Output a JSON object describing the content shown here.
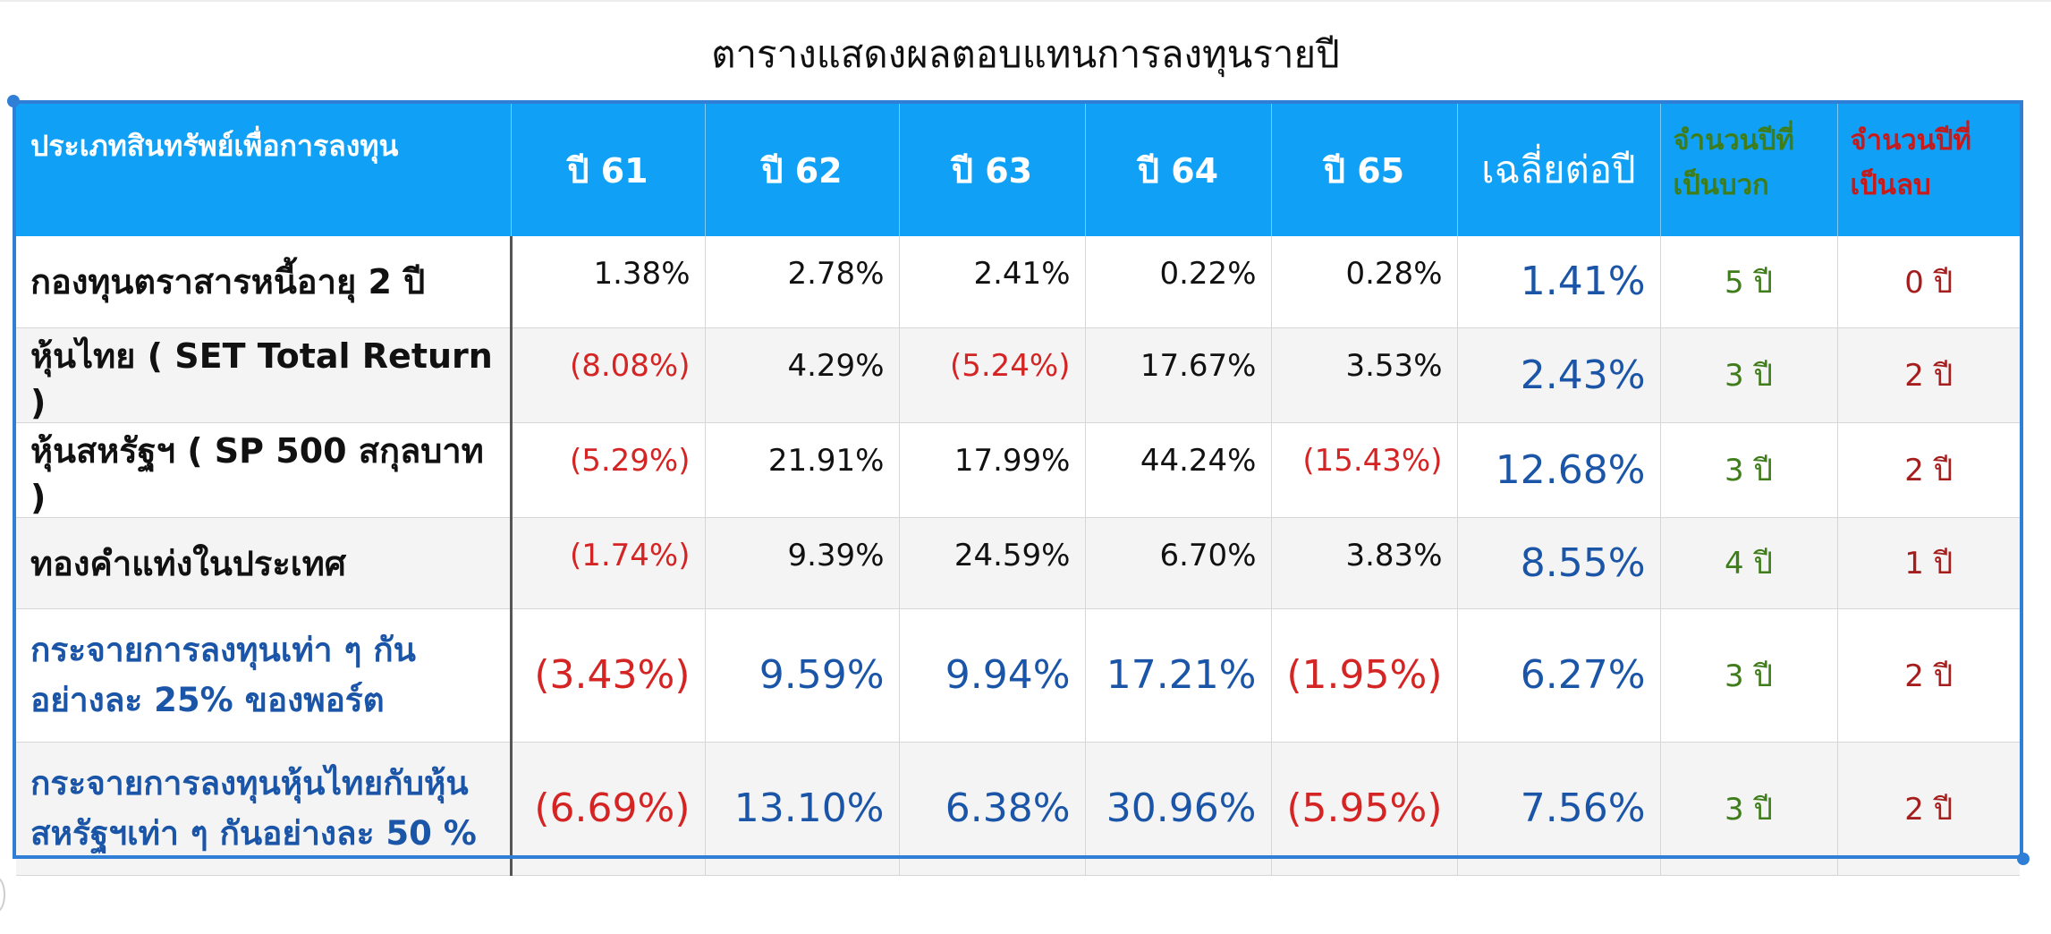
{
  "title": "ตารางแสดงผลตอบแทนการลงทุนรายปี",
  "headers": {
    "asset": "ประเภทสินทรัพย์เพื่อการลงทุน",
    "years": [
      "ปี 61",
      "ปี 62",
      "ปี 63",
      "ปี 64",
      "ปี 65"
    ],
    "average": "เฉลี่ยต่อปี",
    "positive_years": [
      "จำนวนปีที่",
      "เป็นบวก"
    ],
    "negative_years": [
      "จำนวนปีที่",
      "เป็นลบ"
    ]
  },
  "colors": {
    "header_bg": "#10a1f6",
    "positive_count": "#3f7d1a",
    "negative_count": "#a51e1e",
    "negative_value": "#d42424",
    "average_value": "#1b55a8",
    "frame": "#2f7fd6"
  },
  "rows": [
    {
      "asset": [
        "กองทุนตราสารหนี้อายุ 2 ปี"
      ],
      "values": [
        "1.38%",
        "2.78%",
        "2.41%",
        "0.22%",
        "0.28%"
      ],
      "average": "1.41%",
      "positive": "5 ปี",
      "negative": "0 ปี"
    },
    {
      "asset": [
        "หุ้นไทย ( SET Total Return )"
      ],
      "values": [
        "(8.08%)",
        "4.29%",
        "(5.24%)",
        "17.67%",
        "3.53%"
      ],
      "average": "2.43%",
      "positive": "3 ปี",
      "negative": "2 ปี"
    },
    {
      "asset": [
        "หุ้นสหรัฐฯ ( SP 500 สกุลบาท )"
      ],
      "values": [
        "(5.29%)",
        "21.91%",
        "17.99%",
        "44.24%",
        "(15.43%)"
      ],
      "average": "12.68%",
      "positive": "3 ปี",
      "negative": "2 ปี"
    },
    {
      "asset": [
        "ทองคำแท่งในประเทศ"
      ],
      "values": [
        "(1.74%)",
        "9.39%",
        "24.59%",
        "6.70%",
        "3.83%"
      ],
      "average": "8.55%",
      "positive": "4 ปี",
      "negative": "1 ปี"
    },
    {
      "asset": [
        "กระจายการลงทุนเท่า ๆ กัน",
        "อย่างละ 25% ของพอร์ต"
      ],
      "values": [
        "(3.43%)",
        "9.59%",
        "9.94%",
        "17.21%",
        "(1.95%)"
      ],
      "average": "6.27%",
      "positive": "3 ปี",
      "negative": "2 ปี"
    },
    {
      "asset": [
        "กระจายการลงทุนหุ้นไทยกับหุ้น",
        "สหรัฐฯเท่า ๆ กันอย่างละ 50 %"
      ],
      "values": [
        "(6.69%)",
        "13.10%",
        "6.38%",
        "30.96%",
        "(5.95%)"
      ],
      "average": "7.56%",
      "positive": "3 ปี",
      "negative": "2 ปี"
    }
  ]
}
